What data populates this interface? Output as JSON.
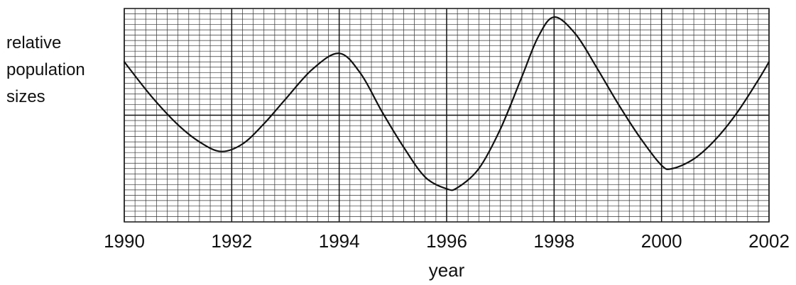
{
  "chart_data": {
    "type": "line",
    "xlabel": "year",
    "ylabel_lines": [
      "relative",
      "population",
      "sizes"
    ],
    "x_ticks": [
      "1990",
      "1992",
      "1994",
      "1996",
      "1998",
      "2000",
      "2002"
    ],
    "xlim": [
      1990,
      2002
    ],
    "ylim": [
      0,
      20
    ],
    "y_major_lines": [
      10
    ],
    "grid": true,
    "series": [
      {
        "x": [
          1990,
          1990.5,
          1991,
          1991.4,
          1991.8,
          1992.2,
          1992.6,
          1993,
          1993.5,
          1994,
          1994.4,
          1994.8,
          1995.2,
          1995.6,
          1996,
          1996.2,
          1996.6,
          1997,
          1997.4,
          1997.7,
          1998,
          1998.4,
          1998.8,
          1999.2,
          1999.6,
          2000,
          2000.2,
          2000.6,
          2001,
          2001.4,
          2001.8,
          2002
        ],
        "y": [
          15.0,
          11.8,
          9.1,
          7.5,
          6.6,
          7.3,
          9.2,
          11.5,
          14.3,
          15.8,
          13.9,
          10.3,
          7.0,
          4.2,
          3.1,
          3.2,
          5.0,
          8.7,
          13.6,
          17.3,
          19.2,
          17.6,
          14.4,
          11.0,
          7.9,
          5.3,
          5.0,
          5.9,
          7.7,
          10.2,
          13.3,
          15.0
        ]
      }
    ]
  }
}
